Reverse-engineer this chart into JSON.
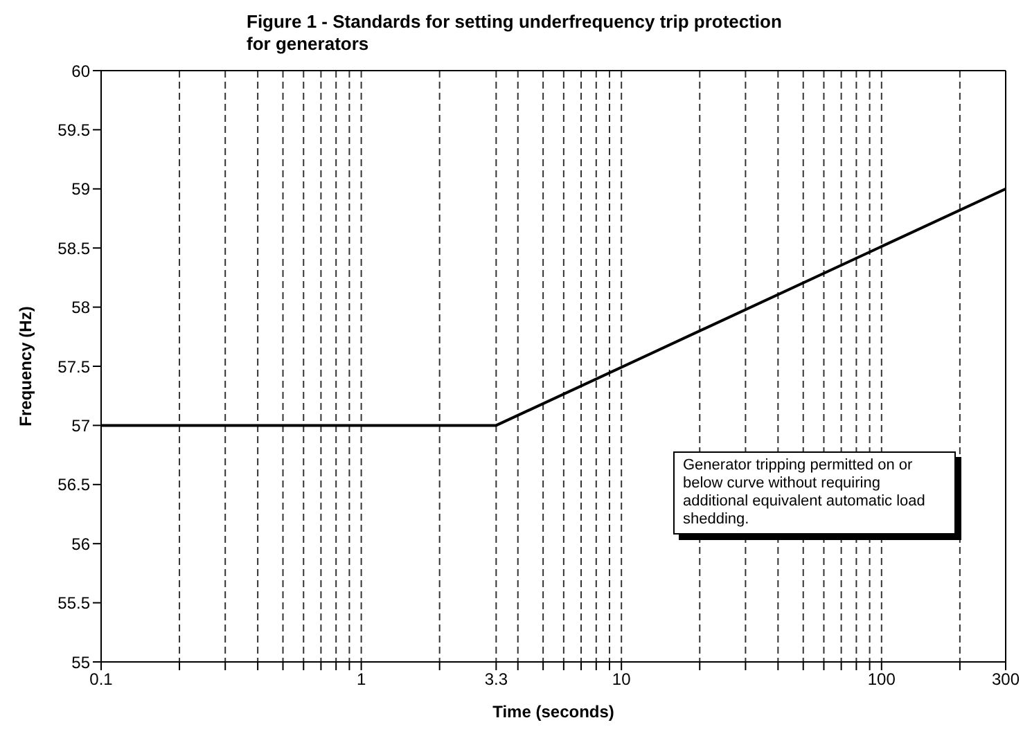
{
  "chart_data": {
    "type": "line",
    "title": "Figure 1 - Standards for setting underfrequency trip protection for generators",
    "xlabel": "Time  (seconds)",
    "ylabel": "Frequency (Hz)",
    "series": [
      {
        "color": "#000000",
        "x": [
          0.1,
          3.3,
          300
        ],
        "values": [
          57,
          57,
          59
        ]
      }
    ],
    "log": "x",
    "xlim": [
      0.1,
      300
    ],
    "xticks": [
      0.1,
      {
        "value": 0.2,
        "label": null
      },
      {
        "value": 0.3,
        "label": null
      },
      {
        "value": 0.4,
        "label": null
      },
      {
        "value": 0.5,
        "label": null
      },
      {
        "value": 0.6,
        "label": null
      },
      {
        "value": 0.7,
        "label": null
      },
      {
        "value": 0.8,
        "label": null
      },
      {
        "value": 0.9,
        "label": null
      },
      1,
      {
        "value": 2,
        "label": null
      },
      3.3,
      {
        "value": 4,
        "label": null
      },
      {
        "value": 5,
        "label": null
      },
      {
        "value": 6,
        "label": null
      },
      {
        "value": 7,
        "label": null
      },
      {
        "value": 8,
        "label": null
      },
      {
        "value": 9,
        "label": null
      },
      10,
      {
        "value": 20,
        "label": null
      },
      {
        "value": 30,
        "label": null
      },
      {
        "value": 40,
        "label": null
      },
      {
        "value": 50,
        "label": null
      },
      {
        "value": 60,
        "label": null
      },
      {
        "value": 70,
        "label": null
      },
      {
        "value": 80,
        "label": null
      },
      {
        "value": 90,
        "label": null
      },
      100,
      {
        "value": 200,
        "label": null
      },
      300
    ],
    "ylim": [
      55,
      60
    ],
    "yticks": [
      55,
      55.5,
      56,
      56.5,
      57,
      57.5,
      58,
      58.5,
      59,
      59.5,
      60
    ],
    "grid": "x",
    "marker": "none",
    "line_style": "solid",
    "annotations": [
      "Generator tripping permitted on or below curve without requiring additional equivalent automatic load shedding."
    ]
  }
}
